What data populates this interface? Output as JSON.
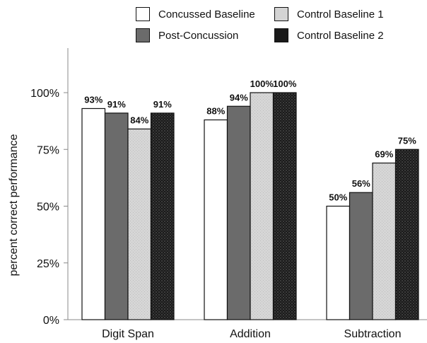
{
  "chart_data": {
    "type": "bar",
    "title": "",
    "xlabel": "",
    "ylabel": "percent correct performance",
    "ylim": [
      0,
      100
    ],
    "yticks": [
      "0%",
      "25%",
      "50%",
      "75%",
      "100%"
    ],
    "grid": false,
    "legend_position": "top",
    "categories": [
      "Digit Span",
      "Addition",
      "Subtraction"
    ],
    "series": [
      {
        "name": "Concussed Baseline",
        "values": [
          93,
          88,
          50
        ],
        "labels": [
          "93%",
          "88%",
          "50%"
        ],
        "color": "#ffffff",
        "pattern": "solid"
      },
      {
        "name": "Post-Concussion",
        "values": [
          91,
          94,
          56
        ],
        "labels": [
          "91%",
          "94%",
          "56%"
        ],
        "color": "#6b6b6b",
        "pattern": "solid"
      },
      {
        "name": "Control Baseline 1",
        "values": [
          84,
          100,
          69
        ],
        "labels": [
          "84%",
          "100%",
          "69%"
        ],
        "color": "#d4d4d4",
        "pattern": "speckled"
      },
      {
        "name": "Control Baseline 2",
        "values": [
          91,
          100,
          75
        ],
        "labels": [
          "91%",
          "100%",
          "75%"
        ],
        "color": "#1a1a1a",
        "pattern": "checkered"
      }
    ]
  }
}
